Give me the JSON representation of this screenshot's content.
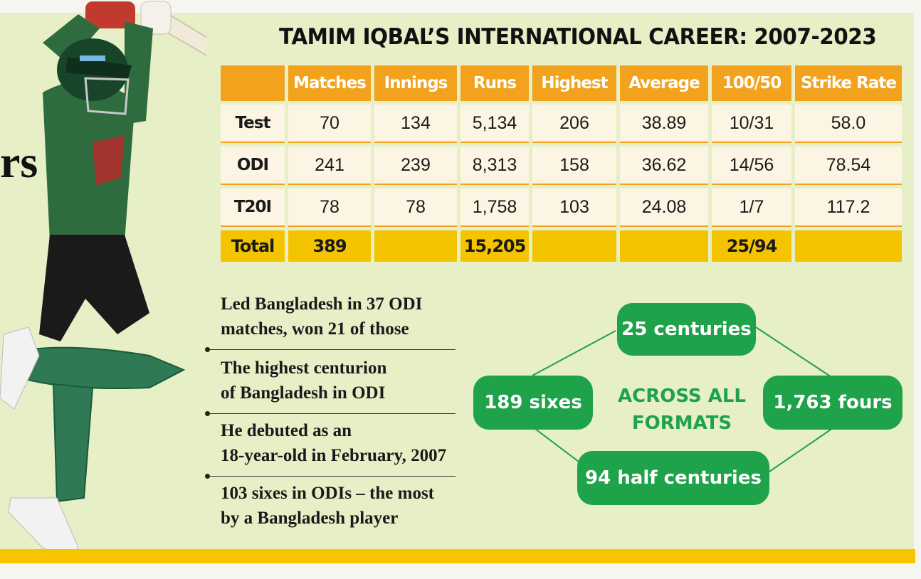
{
  "headline_fragment": "rs",
  "title": "TAMIM IQBAL’S INTERNATIONAL CAREER: 2007-2023",
  "table": {
    "headers": [
      "Matches",
      "Innings",
      "Runs",
      "Highest",
      "Average",
      "100/50",
      "Strike Rate"
    ],
    "rows": [
      {
        "label": "Test",
        "cells": [
          "70",
          "134",
          "5,134",
          "206",
          "38.89",
          "10/31",
          "58.0"
        ]
      },
      {
        "label": "ODI",
        "cells": [
          "241",
          "239",
          "8,313",
          "158",
          "36.62",
          "14/56",
          "78.54"
        ]
      },
      {
        "label": "T20I",
        "cells": [
          "78",
          "78",
          "1,758",
          "103",
          "24.08",
          "1/7",
          "117.2"
        ]
      }
    ],
    "total": {
      "label": "Total",
      "matches": "389",
      "runs": "15,205",
      "hundreds_fifties": "25/94"
    }
  },
  "facts": [
    {
      "line1": "Led Bangladesh in 37 ODI",
      "line2": "matches, won 21 of those"
    },
    {
      "line1": "The highest centurion",
      "line2": "of Bangladesh in ODI"
    },
    {
      "line1": "He debuted as an",
      "line2": "18-year-old in February, 2007"
    },
    {
      "line1": "103 sixes in ODIs – the most",
      "line2": "by a Bangladesh player"
    }
  ],
  "diagram": {
    "center_line1": "ACROSS ALL",
    "center_line2": "FORMATS",
    "top": "25 centuries",
    "left": "189 sixes",
    "right": "1,763 fours",
    "bottom": "94 half centuries"
  },
  "colors": {
    "background": "#e6efc6",
    "header_orange": "#f2a21c",
    "total_yellow": "#f5c400",
    "cell_cream": "#fdf5e3",
    "pill_green": "#1ea24a",
    "jersey_green": "#2e6b3e"
  },
  "illustration": "batsman-photo"
}
